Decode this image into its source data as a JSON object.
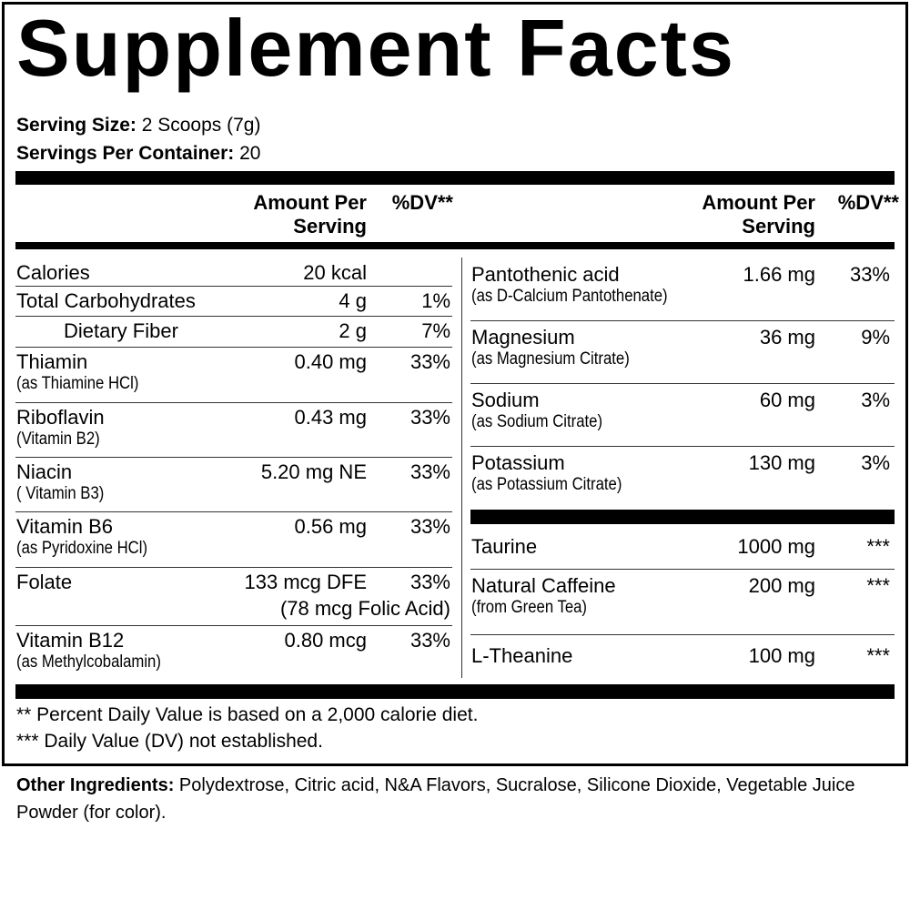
{
  "title": "Supplement Facts",
  "serving": [
    {
      "label": "Serving Size:",
      "value": "2 Scoops (7g)"
    },
    {
      "label": "Servings Per Container:",
      "value": "20"
    }
  ],
  "columns": [
    {
      "header_amount": "Amount Per Serving",
      "header_dv": "%DV**",
      "groups": [
        [
          {
            "name": "Calories",
            "amount": "20 kcal"
          },
          {
            "name": "Total Carbohydrates",
            "amount": "4 g",
            "dv": "1%"
          },
          {
            "name": "Dietary Fiber",
            "amount": "2 g",
            "dv": "7%",
            "indent": true
          },
          {
            "name": "Thiamin",
            "sub": "(as Thiamine HCl)",
            "amount": "0.40 mg",
            "dv": "33%"
          },
          {
            "name": "Riboflavin",
            "sub": "(Vitamin B2)",
            "amount": "0.43 mg",
            "dv": "33%"
          },
          {
            "name": "Niacin",
            "sub": "( Vitamin B3)",
            "amount": "5.20 mg NE",
            "dv": "33%"
          },
          {
            "name": "Vitamin B6",
            "sub": "(as Pyridoxine HCl)",
            "amount": "0.56 mg",
            "dv": "33%"
          },
          {
            "name": "Folate",
            "amount": "133 mcg DFE",
            "amount_sub": "(78 mcg Folic Acid)",
            "dv": "33%"
          },
          {
            "name": "Vitamin B12",
            "sub": "(as Methylcobalamin)",
            "amount": "0.80 mcg",
            "dv": "33%"
          }
        ]
      ]
    },
    {
      "header_amount": "Amount Per Serving",
      "header_dv": "%DV**",
      "groups": [
        [
          {
            "name": "Pantothenic acid",
            "sub": "(as D-Calcium Pantothenate)",
            "amount": "1.66 mg",
            "dv": "33%"
          },
          {
            "name": "Magnesium",
            "sub": "(as Magnesium Citrate)",
            "amount": "36 mg",
            "dv": "9%"
          },
          {
            "name": "Sodium",
            "sub": "(as Sodium Citrate)",
            "amount": "60 mg",
            "dv": "3%"
          },
          {
            "name": "Potassium",
            "sub": "(as Potassium Citrate)",
            "amount": "130 mg",
            "dv": "3%"
          }
        ],
        [
          {
            "name": "Taurine",
            "amount": "1000 mg",
            "dv": "***"
          },
          {
            "name": "Natural Caffeine",
            "sub": "(from Green Tea)",
            "amount": "200 mg",
            "dv": "***"
          },
          {
            "name": "L-Theanine",
            "amount": "100 mg",
            "dv": "***"
          }
        ]
      ]
    }
  ],
  "footnotes": [
    "** Percent Daily Value is based on a 2,000 calorie diet.",
    "*** Daily Value (DV) not established."
  ],
  "other_ingredients": {
    "label": "Other Ingredients:",
    "text": "Polydextrose, Citric acid, N&A Flavors, Sucralose, Silicone Dioxide, Vegetable Juice Powder (for color)."
  }
}
